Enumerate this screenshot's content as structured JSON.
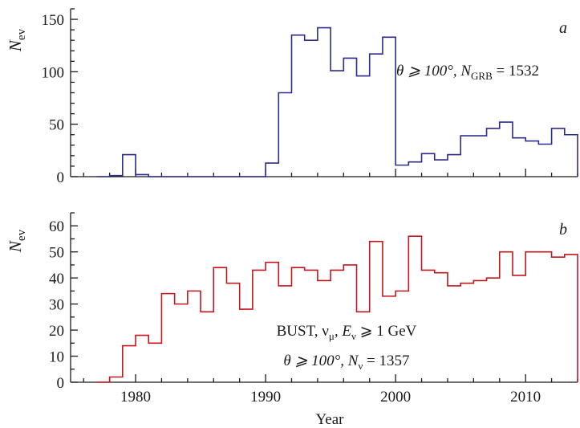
{
  "chart_data": [
    {
      "type": "line",
      "panel_label": "a",
      "annotation": "θ ⩾ 100°, N",
      "annotation_sub": "GRB",
      "annotation_tail": " = 1532",
      "ylabel": "N",
      "ylabel_sub": "ev",
      "xlabel": "",
      "xlim": [
        1975,
        2014
      ],
      "ylim": [
        0,
        160
      ],
      "yticks": [
        0,
        50,
        100,
        150
      ],
      "xticks": [
        1980,
        1990,
        2000,
        2010
      ],
      "color": "#2b2b8c",
      "step": 1,
      "x": [
        1977,
        1978,
        1979,
        1980,
        1981,
        1982,
        1983,
        1984,
        1985,
        1986,
        1987,
        1988,
        1989,
        1990,
        1991,
        1992,
        1993,
        1994,
        1995,
        1996,
        1997,
        1998,
        1999,
        2000,
        2001,
        2002,
        2003,
        2004,
        2005,
        2006,
        2007,
        2008,
        2009,
        2010,
        2011,
        2012,
        2013
      ],
      "values": [
        0,
        1,
        21,
        2,
        0,
        0,
        0,
        0,
        0,
        0,
        0,
        0,
        0,
        13,
        80,
        135,
        130,
        142,
        101,
        113,
        96,
        117,
        133,
        11,
        14,
        22,
        16,
        21,
        39,
        39,
        46,
        52,
        37,
        34,
        31,
        46,
        40
      ]
    },
    {
      "type": "line",
      "panel_label": "b",
      "annotation_line1": "BUST, ν",
      "annotation_line1_sub": "μ",
      "annotation_line1_mid": ", E",
      "annotation_line1_sub2": "ν",
      "annotation_line1_tail": " ⩾ 1 GeV",
      "annotation_line2": "θ ⩾ 100°, N",
      "annotation_line2_sub": "ν",
      "annotation_line2_tail": " = 1357",
      "ylabel": "N",
      "ylabel_sub": "ev",
      "xlabel": "Year",
      "xlim": [
        1975,
        2014
      ],
      "ylim": [
        0,
        65
      ],
      "yticks": [
        0,
        10,
        20,
        30,
        40,
        50,
        60
      ],
      "xticks": [
        1980,
        1990,
        2000,
        2010
      ],
      "color": "#c0181e",
      "step": 1,
      "x": [
        1977,
        1978,
        1979,
        1980,
        1981,
        1982,
        1983,
        1984,
        1985,
        1986,
        1987,
        1988,
        1989,
        1990,
        1991,
        1992,
        1993,
        1994,
        1995,
        1996,
        1997,
        1998,
        1999,
        2000,
        2001,
        2002,
        2003,
        2004,
        2005,
        2006,
        2007,
        2008,
        2009,
        2010,
        2011,
        2012,
        2013
      ],
      "values": [
        0,
        2,
        14,
        18,
        15,
        34,
        30,
        35,
        27,
        44,
        38,
        28,
        43,
        46,
        37,
        44,
        43,
        39,
        43,
        45,
        27,
        54,
        33,
        35,
        56,
        43,
        42,
        37,
        38,
        39,
        40,
        50,
        41,
        50,
        50,
        48,
        49
      ]
    }
  ]
}
